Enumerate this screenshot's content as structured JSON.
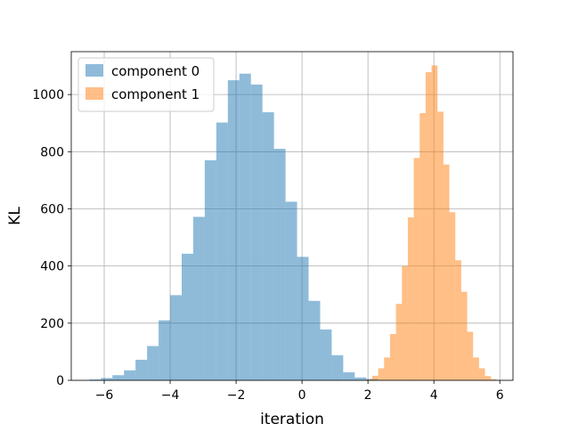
{
  "colors": {
    "component_0": "#1f77b4",
    "component_1": "#ff7f0e",
    "grid": "#b0b0b0",
    "frame": "#000000"
  },
  "chart_data": {
    "type": "bar",
    "subtype": "histogram",
    "title": "",
    "xlabel": "iteration",
    "ylabel": "KL",
    "xlim": [
      -7.0,
      6.4
    ],
    "ylim": [
      0,
      1150
    ],
    "xticks": [
      -6,
      -4,
      -2,
      0,
      2,
      4,
      6
    ],
    "xtick_labels": [
      "−6",
      "−4",
      "−2",
      "0",
      "2",
      "4",
      "6"
    ],
    "yticks": [
      0,
      200,
      400,
      600,
      800,
      1000
    ],
    "ytick_labels": [
      "0",
      "200",
      "400",
      "600",
      "800",
      "1000"
    ],
    "grid": true,
    "legend_position": "top-left",
    "series": [
      {
        "name": "component 0",
        "color": "#1f77b4",
        "alpha": 0.5,
        "bins": [
          [
            -6.45,
            -6.1,
            3
          ],
          [
            -6.1,
            -5.75,
            8
          ],
          [
            -5.75,
            -5.4,
            18
          ],
          [
            -5.4,
            -5.05,
            35
          ],
          [
            -5.05,
            -4.7,
            72
          ],
          [
            -4.7,
            -4.35,
            120
          ],
          [
            -4.35,
            -4.0,
            210
          ],
          [
            -4.0,
            -3.65,
            298
          ],
          [
            -3.65,
            -3.3,
            443
          ],
          [
            -3.3,
            -2.95,
            572
          ],
          [
            -2.95,
            -2.6,
            770
          ],
          [
            -2.6,
            -2.25,
            902
          ],
          [
            -2.25,
            -1.9,
            1050
          ],
          [
            -1.9,
            -1.55,
            1073
          ],
          [
            -1.55,
            -1.2,
            1035
          ],
          [
            -1.2,
            -0.85,
            938
          ],
          [
            -0.85,
            -0.5,
            810
          ],
          [
            -0.5,
            -0.15,
            625
          ],
          [
            -0.15,
            0.2,
            432
          ],
          [
            0.2,
            0.55,
            278
          ],
          [
            0.55,
            0.9,
            178
          ],
          [
            0.9,
            1.25,
            88
          ],
          [
            1.25,
            1.6,
            28
          ],
          [
            1.6,
            1.95,
            10
          ],
          [
            1.95,
            2.3,
            5
          ]
        ]
      },
      {
        "name": "component 1",
        "color": "#ff7f0e",
        "alpha": 0.5,
        "bins": [
          [
            1.95,
            2.13,
            3
          ],
          [
            2.13,
            2.31,
            16
          ],
          [
            2.31,
            2.49,
            42
          ],
          [
            2.49,
            2.67,
            80
          ],
          [
            2.67,
            2.85,
            162
          ],
          [
            2.85,
            3.03,
            268
          ],
          [
            3.03,
            3.21,
            400
          ],
          [
            3.21,
            3.39,
            570
          ],
          [
            3.39,
            3.57,
            778
          ],
          [
            3.57,
            3.75,
            935
          ],
          [
            3.75,
            3.93,
            1078
          ],
          [
            3.93,
            4.11,
            1102
          ],
          [
            4.11,
            4.29,
            940
          ],
          [
            4.29,
            4.47,
            755
          ],
          [
            4.47,
            4.65,
            588
          ],
          [
            4.65,
            4.83,
            420
          ],
          [
            4.83,
            5.01,
            310
          ],
          [
            5.01,
            5.19,
            170
          ],
          [
            5.19,
            5.37,
            80
          ],
          [
            5.37,
            5.55,
            42
          ],
          [
            5.55,
            5.73,
            15
          ],
          [
            5.73,
            5.91,
            4
          ]
        ]
      }
    ]
  }
}
